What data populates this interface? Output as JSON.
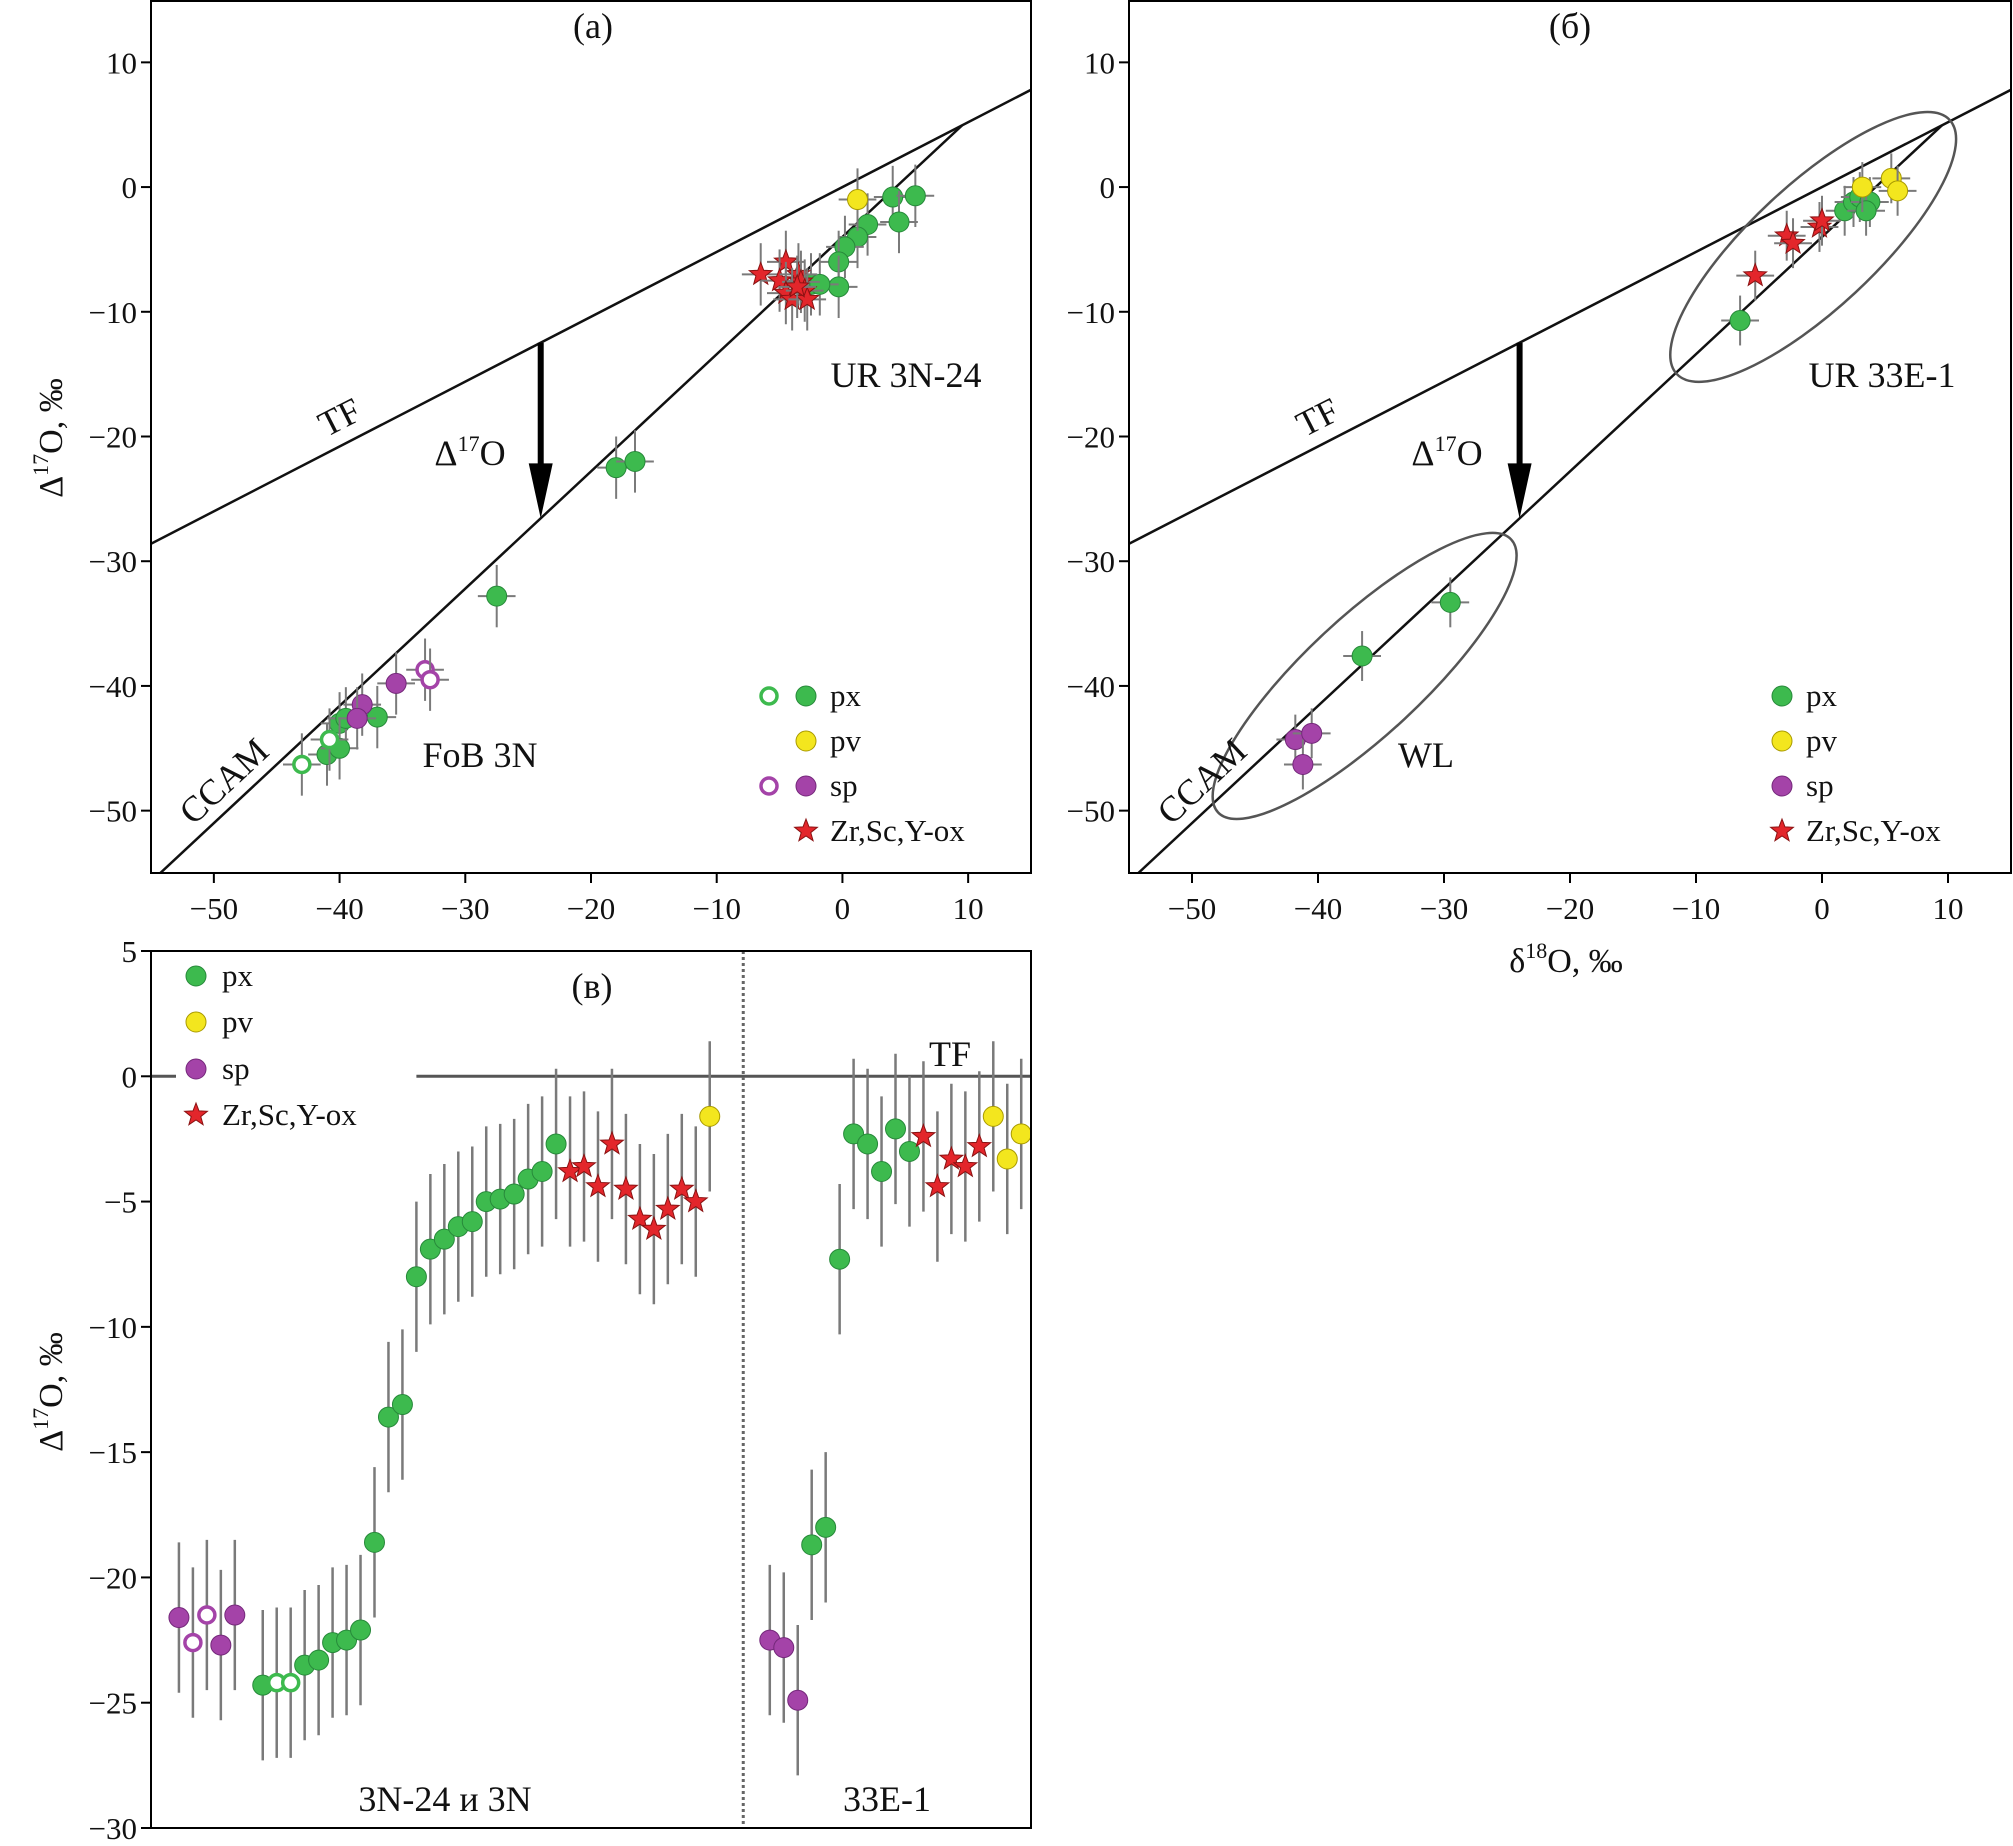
{
  "colors": {
    "px": "#3dba4e",
    "pv": "#f3e61e",
    "sp": "#a443a8",
    "star": "#e3262b",
    "line": "#111111",
    "errorbar": "#7a7a7a"
  },
  "chart_data": [
    {
      "panel": "(a)",
      "type": "scatter",
      "xlim": [
        -55,
        15
      ],
      "ylim": [
        -55,
        15
      ],
      "xticks": [
        -50,
        -40,
        -30,
        -20,
        -10,
        0,
        10
      ],
      "yticks": [
        10,
        0,
        -10,
        -20,
        -30,
        -40,
        -50
      ],
      "ylabel": "Δ17O, ‰",
      "lines": {
        "TF": {
          "label": "TF",
          "slope": 0.52,
          "intercept": 0
        },
        "CCAM": {
          "label": "CCAM",
          "slope": 0.94,
          "intercept": -4.0
        }
      },
      "arrow_label": "Δ17O",
      "group_labels": [
        "UR 3N-24",
        "FoB 3N"
      ],
      "legend": [
        "px",
        "pv",
        "sp",
        "Zr,Sc,Y-ox"
      ],
      "series": [
        {
          "name": "px",
          "filled": [
            [
              -18,
              -22.5
            ],
            [
              -16.5,
              -22
            ],
            [
              -27.5,
              -32.8
            ],
            [
              -40,
              -43
            ],
            [
              -39.5,
              -42.6
            ],
            [
              -41,
              -45.5
            ],
            [
              -40,
              -45
            ],
            [
              -37,
              -42.5
            ],
            [
              4,
              -0.8
            ],
            [
              5.8,
              -0.7
            ],
            [
              4.5,
              -2.8
            ],
            [
              2,
              -3
            ],
            [
              1.2,
              -4
            ],
            [
              0.2,
              -4.8
            ],
            [
              -0.3,
              -6
            ],
            [
              -0.3,
              -8
            ],
            [
              -2.5,
              -7.8
            ],
            [
              -1.8,
              -7.8
            ]
          ],
          "open": [
            [
              -43,
              -46.3
            ],
            [
              -40.8,
              -44.3
            ]
          ]
        },
        {
          "name": "pv",
          "filled": [
            [
              1.2,
              -1
            ]
          ],
          "open": []
        },
        {
          "name": "sp",
          "filled": [
            [
              -35.5,
              -39.8
            ],
            [
              -38.2,
              -41.5
            ],
            [
              -38.6,
              -42.6
            ]
          ],
          "open": [
            [
              -33.2,
              -38.7
            ],
            [
              -32.8,
              -39.5
            ]
          ]
        },
        {
          "name": "Zr,Sc,Y-ox",
          "filled": [
            [
              -6.5,
              -7
            ],
            [
              -4.5,
              -6
            ],
            [
              -5,
              -7.5
            ],
            [
              -3.5,
              -7
            ],
            [
              -3.3,
              -7.6
            ],
            [
              -4.5,
              -8.5
            ],
            [
              -4,
              -9
            ],
            [
              -3,
              -8.3
            ],
            [
              -2.8,
              -9
            ],
            [
              -3.6,
              -8
            ]
          ],
          "open": []
        }
      ],
      "xerr": 1.5,
      "yerr": 2.5
    },
    {
      "panel": "(б)",
      "type": "scatter",
      "xlim": [
        -55,
        15
      ],
      "ylim": [
        -55,
        15
      ],
      "xticks": [
        -50,
        -40,
        -30,
        -20,
        -10,
        0,
        10
      ],
      "yticks": [
        10,
        0,
        -10,
        -20,
        -30,
        -40,
        -50
      ],
      "xlabel": "δ18O, ‰",
      "lines": {
        "TF": {
          "label": "TF",
          "slope": 0.52,
          "intercept": 0
        },
        "CCAM": {
          "label": "CCAM",
          "slope": 0.94,
          "intercept": -4.0
        }
      },
      "arrow_label": "Δ17O",
      "group_labels": [
        "UR 33E-1",
        "WL"
      ],
      "legend": [
        "px",
        "pv",
        "sp",
        "Zr,Sc,Y-ox"
      ],
      "series": [
        {
          "name": "px",
          "filled": [
            [
              -6.5,
              -10.7
            ],
            [
              -36.5,
              -37.6
            ],
            [
              -29.5,
              -33.3
            ],
            [
              1.8,
              -1.9
            ],
            [
              2.5,
              -1.2
            ],
            [
              3,
              -0.8
            ],
            [
              3.8,
              -1.2
            ],
            [
              3.5,
              -1.9
            ]
          ],
          "open": []
        },
        {
          "name": "pv",
          "filled": [
            [
              3.2,
              0
            ],
            [
              5.5,
              0.7
            ],
            [
              6,
              -0.3
            ]
          ],
          "open": []
        },
        {
          "name": "sp",
          "filled": [
            [
              -41.8,
              -44.3
            ],
            [
              -40.5,
              -43.8
            ],
            [
              -41.2,
              -46.3
            ]
          ],
          "open": []
        },
        {
          "name": "Zr,Sc,Y-ox",
          "filled": [
            [
              -5.3,
              -7.1
            ],
            [
              -2.8,
              -3.9
            ],
            [
              -2.3,
              -4.5
            ],
            [
              -0.2,
              -3.2
            ],
            [
              0,
              -2.7
            ]
          ],
          "open": []
        }
      ],
      "xerr": 1.5,
      "yerr": 2.0
    },
    {
      "panel": "(в)",
      "type": "scatter",
      "ylim": [
        -30,
        5
      ],
      "yticks": [
        5,
        0,
        -5,
        -10,
        -15,
        -20,
        -25,
        -30
      ],
      "ylabel": "Δ17O, ‰",
      "reference_line": {
        "label": "TF",
        "y": 0
      },
      "group_labels": [
        "3N-24 и 3N",
        "33E-1"
      ],
      "legend": [
        "px",
        "pv",
        "sp",
        "Zr,Sc,Y-ox"
      ],
      "points_3N": [
        [
          "sp",
          -21.6,
          false
        ],
        [
          "sp",
          -22.6,
          true
        ],
        [
          "sp",
          -21.5,
          true
        ],
        [
          "sp",
          -22.7,
          false
        ],
        [
          "sp",
          -21.5,
          false
        ],
        null,
        [
          "px",
          -24.3,
          false
        ],
        [
          "px",
          -24.2,
          true
        ],
        [
          "px",
          -24.2,
          true
        ],
        [
          "px",
          -23.5,
          false
        ],
        [
          "px",
          -23.3,
          false
        ],
        [
          "px",
          -22.6,
          false
        ],
        [
          "px",
          -22.5,
          false
        ],
        [
          "px",
          -22.1,
          false
        ],
        [
          "px",
          -18.6,
          false
        ],
        [
          "px",
          -13.6,
          false
        ],
        [
          "px",
          -13.1,
          false
        ],
        [
          "px",
          -8.0,
          false
        ],
        [
          "px",
          -6.9,
          false
        ],
        [
          "px",
          -6.5,
          false
        ],
        [
          "px",
          -6.0,
          false
        ],
        [
          "px",
          -5.8,
          false
        ],
        [
          "px",
          -5.0,
          false
        ],
        [
          "px",
          -4.9,
          false
        ],
        [
          "px",
          -4.7,
          false
        ],
        [
          "px",
          -4.1,
          false
        ],
        [
          "px",
          -3.8,
          false
        ],
        [
          "px",
          -2.7,
          false
        ],
        [
          "star",
          -3.8,
          false
        ],
        [
          "star",
          -3.6,
          false
        ],
        [
          "star",
          -4.4,
          false
        ],
        [
          "star",
          -2.7,
          false
        ],
        [
          "star",
          -4.5,
          false
        ],
        [
          "star",
          -5.7,
          false
        ],
        [
          "star",
          -6.1,
          false
        ],
        [
          "star",
          -5.3,
          false
        ],
        [
          "star",
          -4.5,
          false
        ],
        [
          "star",
          -5.0,
          false
        ],
        [
          "pv",
          -1.6,
          false
        ]
      ],
      "points_33E": [
        [
          "sp",
          -22.5,
          false
        ],
        [
          "sp",
          -22.8,
          false
        ],
        [
          "sp",
          -24.9,
          false
        ],
        [
          "px",
          -18.7,
          false
        ],
        [
          "px",
          -18.0,
          false
        ],
        [
          "px",
          -7.3,
          false
        ],
        [
          "px",
          -2.3,
          false
        ],
        [
          "px",
          -2.7,
          false
        ],
        [
          "px",
          -3.8,
          false
        ],
        [
          "px",
          -2.1,
          false
        ],
        [
          "px",
          -3.0,
          false
        ],
        [
          "star",
          -2.4,
          false
        ],
        [
          "star",
          -4.4,
          false
        ],
        [
          "star",
          -3.3,
          false
        ],
        [
          "star",
          -3.6,
          false
        ],
        [
          "star",
          -2.8,
          false
        ],
        [
          "pv",
          -1.6,
          false
        ],
        [
          "pv",
          -3.3,
          false
        ],
        [
          "pv",
          -2.3,
          false
        ]
      ],
      "yerr": 3.0
    }
  ]
}
